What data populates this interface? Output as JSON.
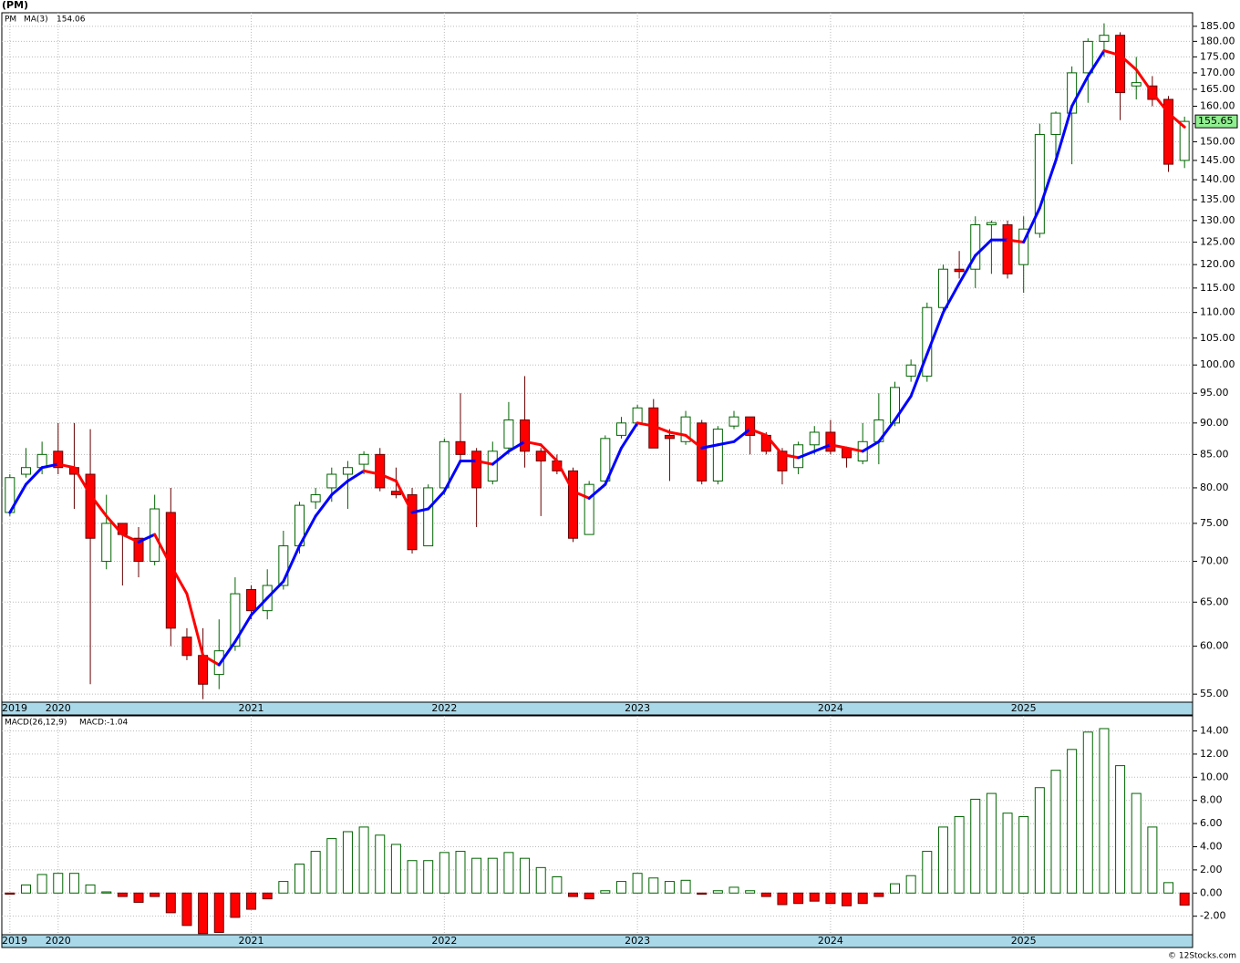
{
  "chart_data": [
    {
      "type": "candlestick",
      "title": "(PM)",
      "log": true,
      "grid": true,
      "categories": [
        "2019",
        null,
        null,
        "2020",
        null,
        null,
        null,
        null,
        null,
        null,
        null,
        null,
        null,
        null,
        null,
        "2021",
        null,
        null,
        null,
        null,
        null,
        null,
        null,
        null,
        null,
        null,
        null,
        "2022",
        null,
        null,
        null,
        null,
        null,
        null,
        null,
        null,
        null,
        null,
        null,
        "2023",
        null,
        null,
        null,
        null,
        null,
        null,
        null,
        null,
        null,
        null,
        null,
        "2024",
        null,
        null,
        null,
        null,
        null,
        null,
        null,
        null,
        null,
        null,
        null,
        "2025",
        null,
        null,
        null,
        null,
        null,
        null,
        null,
        null,
        null,
        null
      ],
      "series": [
        {
          "name": "PM",
          "color": "#008000",
          "up_color": "#006400",
          "down_color": "#ff0000",
          "open": [
            76.5,
            82,
            83,
            85.5,
            83,
            82,
            70,
            75,
            73,
            70,
            76.5,
            61,
            59,
            57,
            60,
            66.5,
            64,
            67,
            72,
            78,
            80,
            82,
            83.5,
            85,
            79.5,
            79,
            72,
            80,
            87,
            85.5,
            81,
            86,
            90.5,
            85.5,
            84,
            82.5,
            73.5,
            81,
            88,
            90,
            92.5,
            88,
            87,
            90,
            81,
            89.5,
            91,
            88,
            85.5,
            83,
            86.5,
            88.5,
            86,
            84,
            87,
            90,
            98,
            98,
            111,
            119,
            119,
            129,
            129,
            120,
            127,
            152,
            158,
            170,
            180,
            182,
            166,
            166,
            162,
            145
          ],
          "high": [
            82,
            86,
            87,
            90,
            90,
            89,
            79,
            75,
            74.5,
            79,
            80,
            62,
            62,
            63,
            68,
            67,
            69,
            74,
            78,
            80,
            83,
            84,
            85.5,
            86,
            83,
            80,
            80.5,
            87.5,
            95,
            86,
            87,
            93.5,
            98,
            86,
            85,
            83,
            81,
            88,
            91,
            93,
            94,
            89,
            92,
            90.5,
            89.5,
            92,
            91,
            88.5,
            86,
            87,
            89.5,
            90.5,
            86,
            90,
            95,
            97,
            101,
            112,
            120,
            123,
            131,
            130,
            130,
            131,
            155,
            158.5,
            172,
            181,
            186,
            183,
            175,
            169,
            163,
            157
          ],
          "low": [
            76,
            81.5,
            82,
            82,
            77,
            56,
            69,
            67,
            68,
            69.5,
            60,
            58.5,
            54.5,
            55.5,
            59.5,
            63,
            63,
            66.5,
            71,
            77,
            78,
            77,
            82,
            79.5,
            78.5,
            71,
            72,
            79,
            84,
            74.5,
            80.5,
            85,
            83,
            76,
            82,
            72.5,
            73.5,
            80.5,
            87.5,
            89.5,
            86,
            81,
            86.5,
            80.5,
            80.5,
            89,
            85,
            85,
            80.5,
            82,
            85,
            85,
            83,
            83.5,
            83.5,
            89.5,
            97,
            97,
            110,
            117,
            115,
            118,
            117,
            114,
            126,
            144,
            144,
            161,
            175,
            156,
            162,
            160,
            142,
            143
          ],
          "close": [
            81.5,
            83,
            85,
            83,
            82,
            73,
            75,
            73.5,
            70,
            77,
            62,
            59,
            56,
            59.5,
            66,
            64,
            67,
            72,
            77.5,
            79,
            82,
            83,
            85,
            80,
            79,
            71.5,
            80,
            87,
            85,
            80,
            85.5,
            90.5,
            85.5,
            84,
            82.5,
            73,
            80.5,
            87.5,
            90,
            92.5,
            86,
            87.5,
            91,
            81,
            89,
            91,
            88,
            85.5,
            82.5,
            86.5,
            88.5,
            85.5,
            84.5,
            87,
            90.5,
            96,
            100,
            111,
            119,
            118.5,
            129,
            129.5,
            118,
            128,
            152,
            158,
            170,
            180,
            182,
            164,
            167,
            162,
            144,
            155.65
          ]
        }
      ],
      "ma": {
        "name": "MA(3)",
        "up_color": "#0000ff",
        "down_color": "#ff0000",
        "values": [
          76.5,
          80.5,
          83,
          83.5,
          83,
          79,
          76,
          73.5,
          72.5,
          73.5,
          69.5,
          66,
          59,
          58,
          60.5,
          63.5,
          65.5,
          67.5,
          72,
          76,
          79,
          81,
          82.5,
          82,
          81,
          76.5,
          77,
          79.5,
          84,
          84,
          83.5,
          85.5,
          87,
          86.5,
          84,
          79.5,
          78.5,
          80.5,
          86,
          90,
          89.5,
          88.5,
          88,
          86,
          86.5,
          87,
          89,
          88,
          85,
          84.5,
          85.5,
          86.5,
          86,
          85.5,
          87,
          90.5,
          94.5,
          102,
          110,
          116,
          122,
          125.5,
          125.5,
          125,
          133,
          145,
          160,
          169,
          177,
          175.5,
          171,
          164,
          158,
          154.06
        ]
      },
      "ylim": [
        54.2,
        189.6
      ],
      "yticks": [
        {
          "value": 55,
          "label": "55.00"
        },
        {
          "value": 60,
          "label": "60.00"
        },
        {
          "value": 65,
          "label": "65.00"
        },
        {
          "value": 70,
          "label": "70.00"
        },
        {
          "value": 75,
          "label": "75.00"
        },
        {
          "value": 80,
          "label": "80.00"
        },
        {
          "value": 85,
          "label": "85.00"
        },
        {
          "value": 90,
          "label": "90.00"
        },
        {
          "value": 95,
          "label": "95.00"
        },
        {
          "value": 100,
          "label": "100.00"
        },
        {
          "value": 105,
          "label": "105.00"
        },
        {
          "value": 110,
          "label": "110.00"
        },
        {
          "value": 115,
          "label": "115.00"
        },
        {
          "value": 120,
          "label": "120.00"
        },
        {
          "value": 125,
          "label": "125.00"
        },
        {
          "value": 130,
          "label": "130.00"
        },
        {
          "value": 135,
          "label": "135.00"
        },
        {
          "value": 140,
          "label": "140.00"
        },
        {
          "value": 145,
          "label": "145.00"
        },
        {
          "value": 150,
          "label": "150.00"
        },
        {
          "value": 155,
          "label": "155.00"
        },
        {
          "value": 160,
          "label": "160.00"
        },
        {
          "value": 165,
          "label": "165.00"
        },
        {
          "value": 170,
          "label": "170.00"
        },
        {
          "value": 175,
          "label": "175.00"
        },
        {
          "value": 180,
          "label": "180.00"
        },
        {
          "value": 185,
          "label": "185.00"
        }
      ],
      "last_color": "#90ee90"
    },
    {
      "type": "bar",
      "title": "MACD(26,12,9)",
      "value_name": "MACD:",
      "grid": true,
      "pos_color": "#006400",
      "neg_color": "#ff0000",
      "name_color": "#0000ff",
      "values": [
        -0.1,
        0.7,
        1.6,
        1.7,
        1.7,
        0.7,
        0.1,
        -0.3,
        -0.8,
        -0.3,
        -1.7,
        -2.8,
        -3.5,
        -3.4,
        -2.1,
        -1.4,
        -0.5,
        1.0,
        2.5,
        3.6,
        4.7,
        5.3,
        5.7,
        5.0,
        4.2,
        2.8,
        2.8,
        3.5,
        3.6,
        3.0,
        3.0,
        3.5,
        3.0,
        2.2,
        1.4,
        -0.3,
        -0.5,
        0.2,
        1.0,
        1.7,
        1.3,
        1.0,
        1.1,
        -0.1,
        0.2,
        0.5,
        0.2,
        -0.3,
        -1.0,
        -0.9,
        -0.7,
        -0.9,
        -1.1,
        -0.9,
        -0.3,
        0.8,
        1.5,
        3.6,
        5.7,
        6.6,
        8.1,
        8.6,
        6.9,
        6.6,
        9.1,
        10.6,
        12.4,
        13.9,
        14.2,
        11.0,
        8.6,
        5.7,
        0.9,
        -1.04
      ],
      "ylim": [
        -3.6,
        15.3
      ],
      "yticks": [
        {
          "value": -2,
          "label": "-2.00"
        },
        {
          "value": 0,
          "label": "0.00"
        },
        {
          "value": 2,
          "label": "2.00"
        },
        {
          "value": 4,
          "label": "4.00"
        },
        {
          "value": 6,
          "label": "6.00"
        },
        {
          "value": 8,
          "label": "8.00"
        },
        {
          "value": 10,
          "label": "10.00"
        },
        {
          "value": 12,
          "label": "12.00"
        },
        {
          "value": 14,
          "label": "14.00"
        }
      ]
    }
  ],
  "footer": "© 12Stocks.com"
}
